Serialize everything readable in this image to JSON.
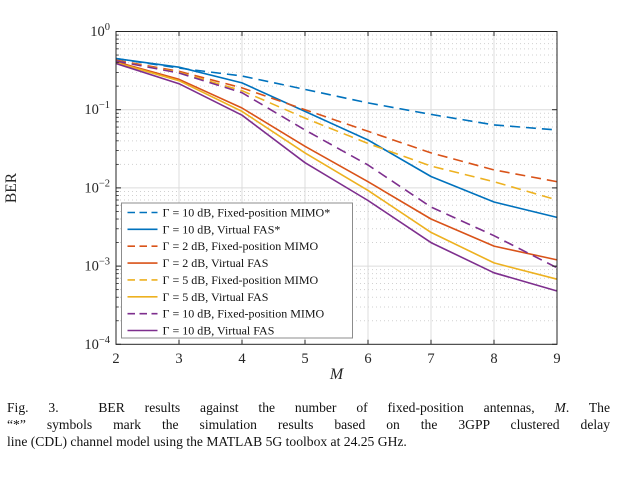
{
  "figure": {
    "caption": {
      "lines": [
        {
          "justify": true,
          "parts": [
            {
              "t": "Fig. 3.  BER results against the number of fixed-position antennas, "
            },
            {
              "t": "M",
              "i": true
            },
            {
              "t": ". The"
            }
          ]
        },
        {
          "justify": true,
          "parts": [
            {
              "t": "“*” symbols mark the simulation results based on the 3GPP clustered delay"
            }
          ]
        },
        {
          "justify": false,
          "parts": [
            {
              "t": "line (CDL) channel model using the MATLAB 5G toolbox at 24.25 GHz."
            }
          ]
        }
      ]
    }
  },
  "chart_data": {
    "type": "line",
    "title": "",
    "xlabel": "M",
    "ylabel": "BER",
    "x": [
      2,
      3,
      4,
      5,
      6,
      7,
      8,
      9
    ],
    "xlim": [
      2,
      9
    ],
    "ylog_exponent_range": [
      0,
      -4
    ],
    "xtick_labels": [
      "2",
      "3",
      "4",
      "5",
      "6",
      "7",
      "8",
      "9"
    ],
    "ytick_exponents": [
      0,
      -1,
      -2,
      -3,
      -4
    ],
    "ytick_base": "10",
    "grid": {
      "major": true,
      "minor_log": true
    },
    "legend_position": "lower-left",
    "axis_color": "#262626",
    "grid_major_color": "#dcdcdc",
    "grid_minor_color": "#c9c9c9",
    "series": [
      {
        "name": "Γ = 10 dB, Fixed-position MIMO*",
        "color": "#0072BD",
        "style": "dashed",
        "values": [
          0.45,
          0.34,
          0.27,
          0.182,
          0.122,
          0.087,
          0.064,
          0.055
        ]
      },
      {
        "name": "Γ = 10 dB, Virtual FAS*",
        "color": "#0072BD",
        "style": "solid",
        "values": [
          0.45,
          0.35,
          0.22,
          0.095,
          0.041,
          0.014,
          0.0066,
          0.0042
        ]
      },
      {
        "name": "Γ = 2 dB, Fixed-position MIMO",
        "color": "#D95319",
        "style": "dashed",
        "values": [
          0.43,
          0.31,
          0.19,
          0.1,
          0.053,
          0.028,
          0.017,
          0.012
        ]
      },
      {
        "name": "Γ = 2 dB, Virtual FAS",
        "color": "#D95319",
        "style": "solid",
        "values": [
          0.41,
          0.245,
          0.105,
          0.034,
          0.012,
          0.004,
          0.0018,
          0.0012
        ]
      },
      {
        "name": "Γ = 5 dB, Fixed-position MIMO",
        "color": "#EDB120",
        "style": "dashed",
        "values": [
          0.42,
          0.3,
          0.175,
          0.078,
          0.037,
          0.019,
          0.012,
          0.007
        ]
      },
      {
        "name": "Γ = 5 dB, Virtual FAS",
        "color": "#EDB120",
        "style": "solid",
        "values": [
          0.4,
          0.235,
          0.095,
          0.028,
          0.0093,
          0.0027,
          0.0011,
          0.00068
        ]
      },
      {
        "name": "Γ = 10 dB, Fixed-position MIMO",
        "color": "#7E2F8E",
        "style": "dashed",
        "values": [
          0.42,
          0.295,
          0.165,
          0.055,
          0.0196,
          0.0057,
          0.00245,
          0.00095
        ]
      },
      {
        "name": "Γ = 10 dB, Virtual FAS",
        "color": "#7E2F8E",
        "style": "solid",
        "values": [
          0.39,
          0.215,
          0.085,
          0.021,
          0.0069,
          0.002,
          0.00082,
          0.00048
        ]
      }
    ]
  }
}
